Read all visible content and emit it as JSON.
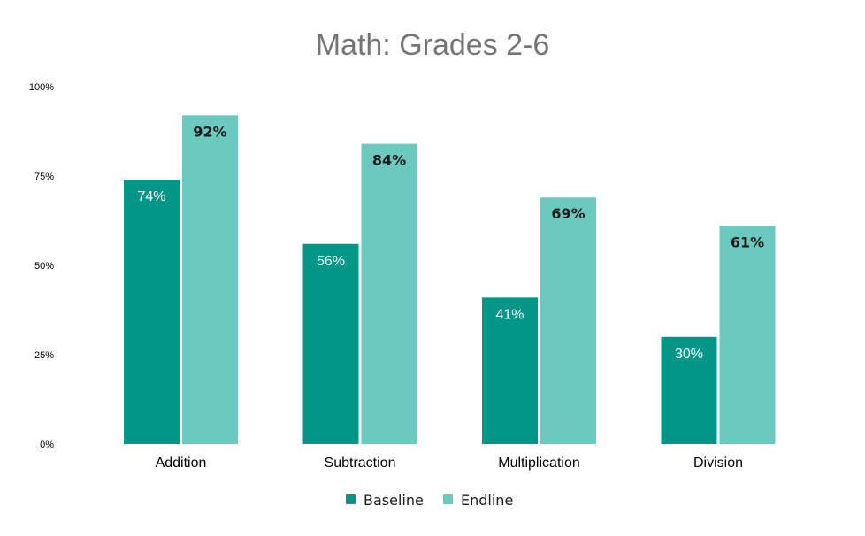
{
  "chart_data": {
    "type": "bar",
    "title": "Math: Grades 2-6",
    "categories": [
      "Addition",
      "Subtraction",
      "Multiplication",
      "Division"
    ],
    "series": [
      {
        "name": "Baseline",
        "color": "#009688",
        "values": [
          74,
          56,
          41,
          30
        ],
        "labels": [
          "74%",
          "56%",
          "41%",
          "30%"
        ]
      },
      {
        "name": "Endline",
        "color": "#6bc9bf",
        "values": [
          92,
          84,
          69,
          61
        ],
        "labels": [
          "92%",
          "84%",
          "69%",
          "61%"
        ]
      }
    ],
    "ylim": [
      0,
      100
    ],
    "yticks": [
      0,
      25,
      50,
      75,
      100
    ],
    "ytick_labels": [
      "0%",
      "25%",
      "50%",
      "75%",
      "100%"
    ],
    "grid": false,
    "legend": "bottom-center"
  }
}
